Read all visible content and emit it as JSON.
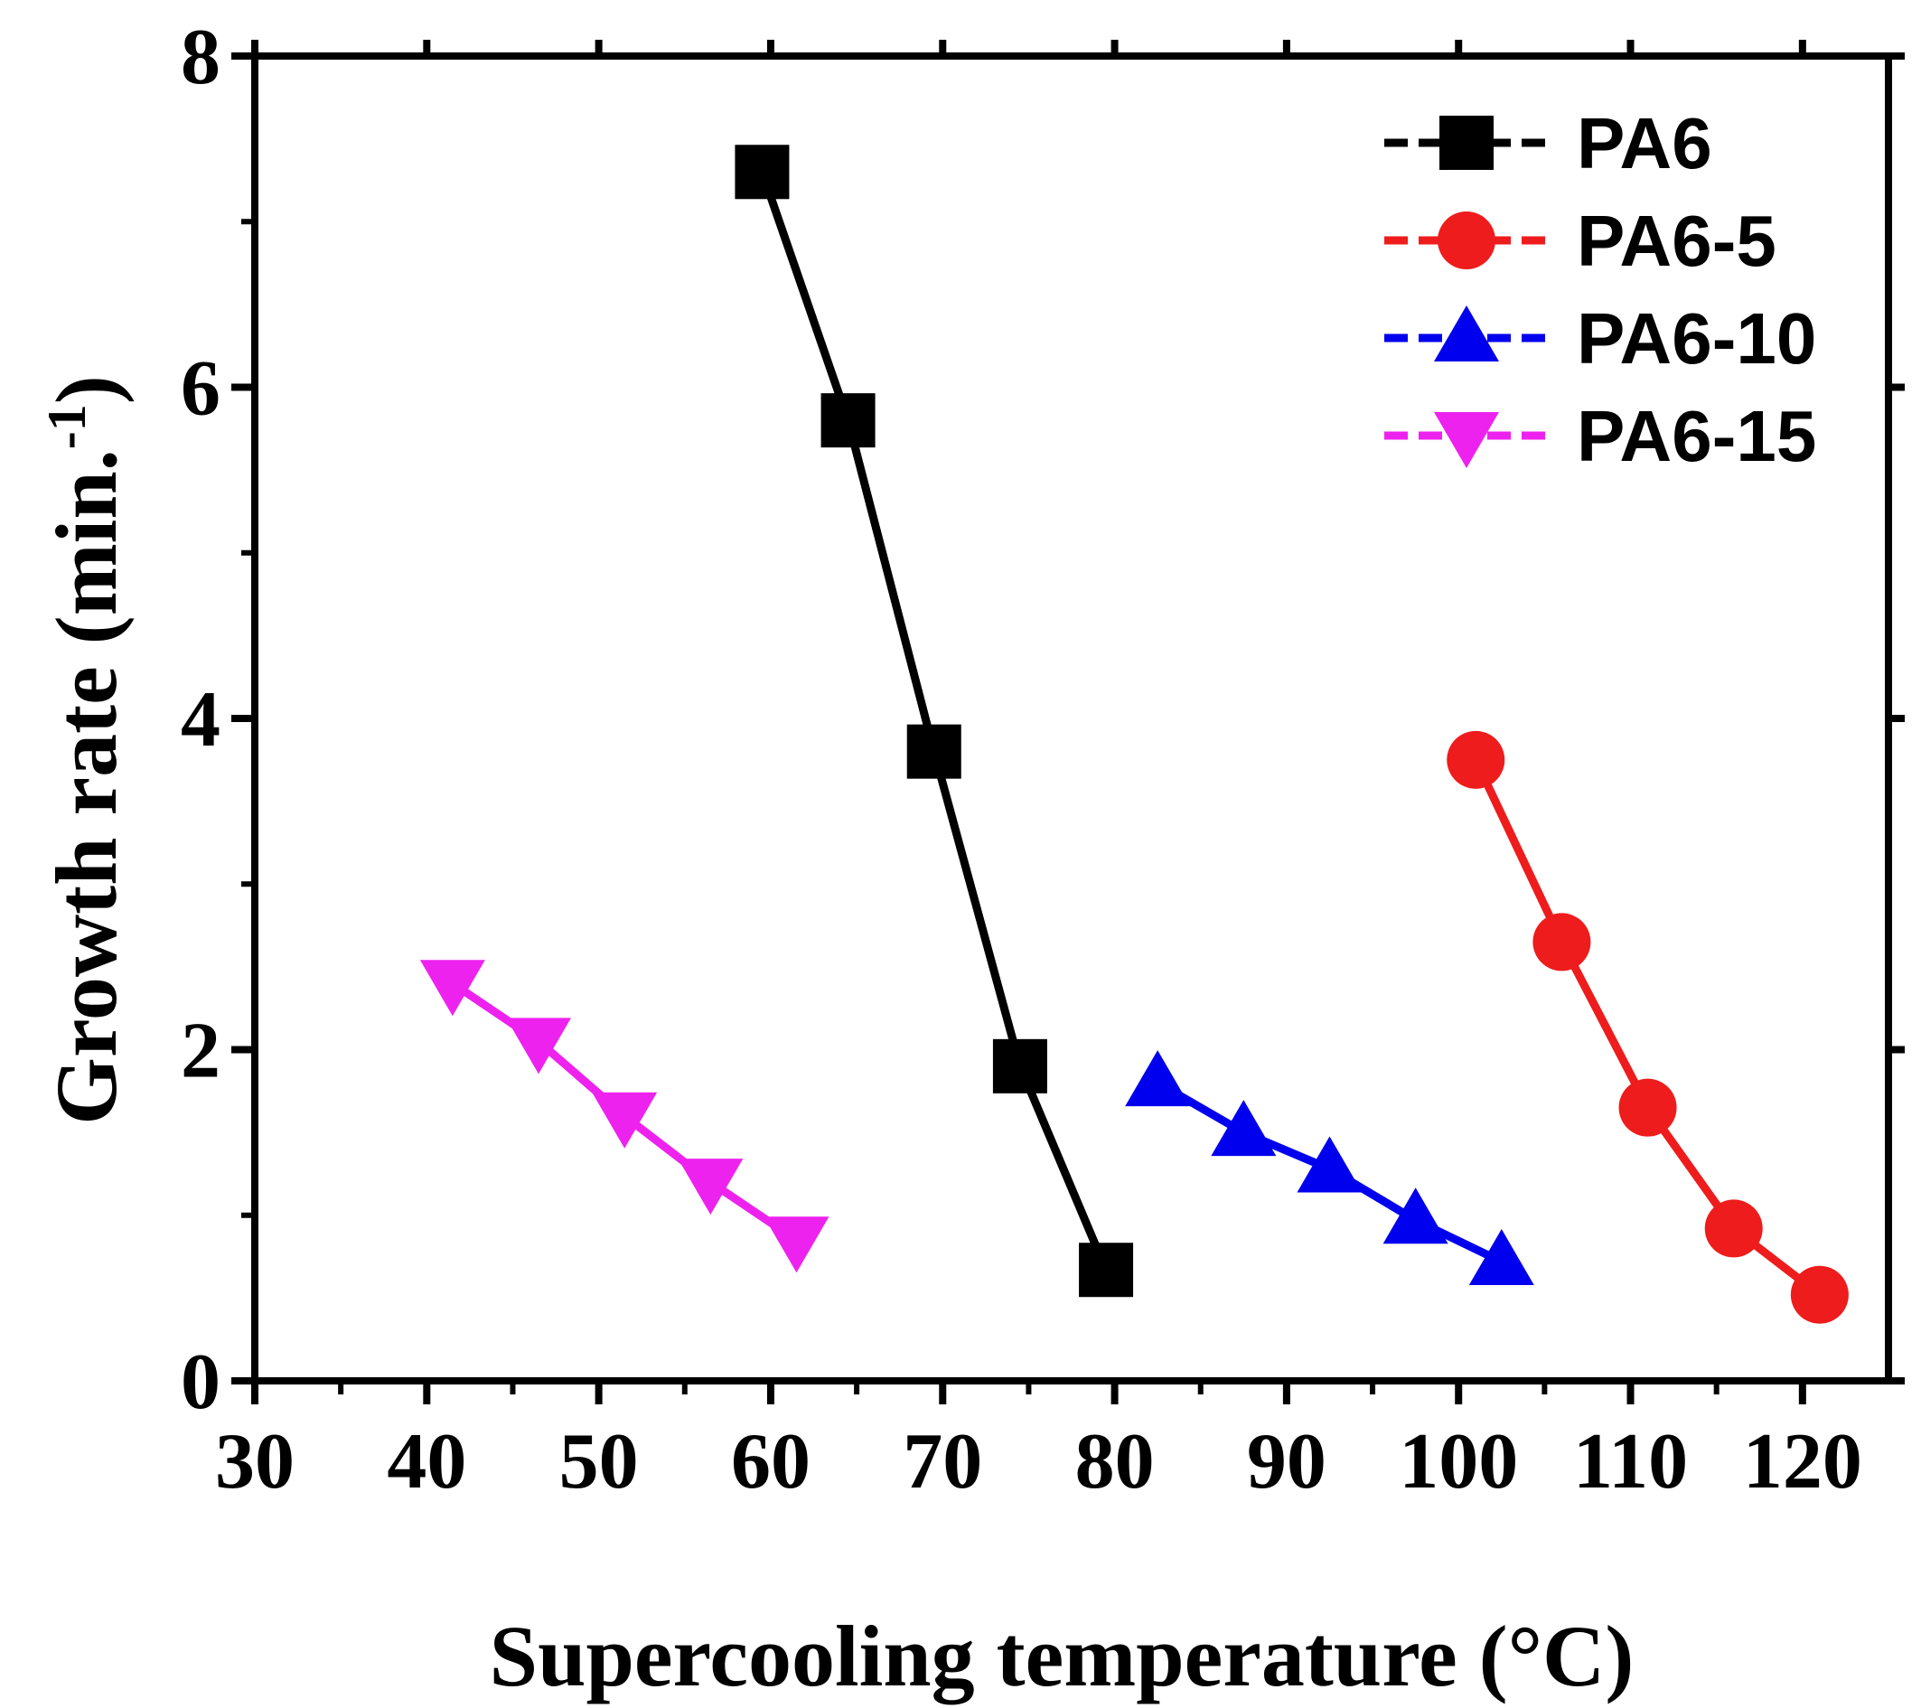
{
  "chart_data": {
    "type": "line",
    "title": "",
    "xlabel": "Supercooling temperature (°C)",
    "ylabel_main": "Growth rate (min.",
    "ylabel_sup": "-1",
    "ylabel_close": ")",
    "xlim": [
      30,
      125
    ],
    "ylim": [
      0,
      8
    ],
    "xticks": [
      30,
      40,
      50,
      60,
      70,
      80,
      90,
      100,
      110,
      120
    ],
    "yticks": [
      0,
      2,
      4,
      6,
      8
    ],
    "legend_position": "top-right",
    "series": [
      {
        "name": "PA6",
        "color": "#000000",
        "marker": "square",
        "x": [
          59.5,
          64.5,
          69.5,
          74.5,
          79.5
        ],
        "y": [
          7.3,
          5.8,
          3.8,
          1.9,
          0.67
        ]
      },
      {
        "name": "PA6-5",
        "color": "#ee1c1c",
        "marker": "circle",
        "x": [
          101,
          106,
          111,
          116,
          121
        ],
        "y": [
          3.75,
          2.65,
          1.65,
          0.92,
          0.52
        ]
      },
      {
        "name": "PA6-10",
        "color": "#0000ee",
        "marker": "triangle-up",
        "x": [
          82.5,
          87.5,
          92.5,
          97.5,
          102.5
        ],
        "y": [
          1.8,
          1.5,
          1.28,
          0.97,
          0.72
        ]
      },
      {
        "name": "PA6-15",
        "color": "#ee22ee",
        "marker": "triangle-down",
        "x": [
          41.5,
          46.5,
          51.5,
          56.5,
          61.5
        ],
        "y": [
          2.4,
          2.05,
          1.6,
          1.2,
          0.85
        ]
      }
    ]
  }
}
